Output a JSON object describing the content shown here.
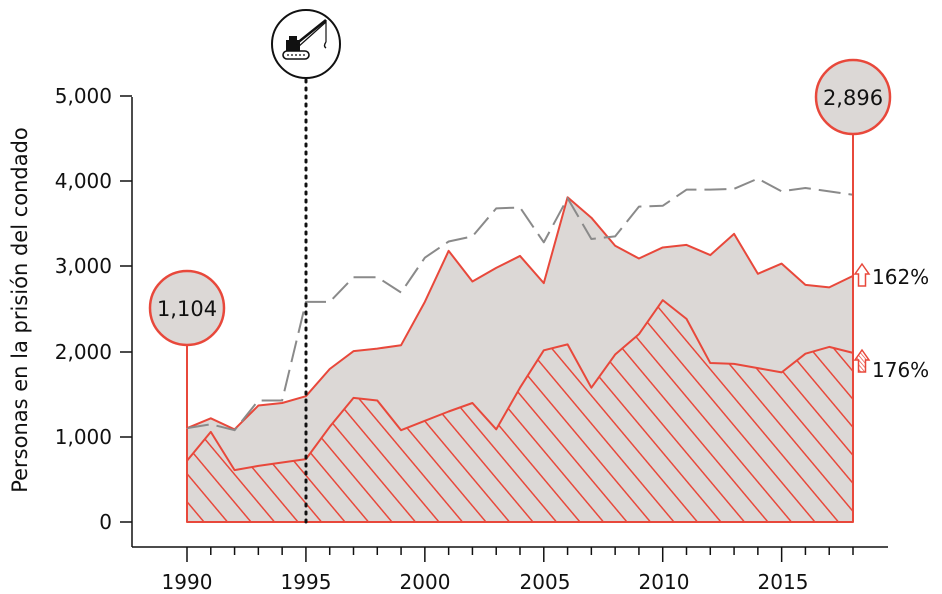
{
  "chart_data": {
    "type": "area",
    "ylabel": "Personas en la prisión del condado",
    "xlabel": "",
    "ylim": [
      0,
      5000
    ],
    "xlim": [
      1990,
      2018
    ],
    "x_ticks": [
      "1990",
      "1995",
      "2000",
      "2005",
      "2010",
      "2015"
    ],
    "y_ticks": [
      "0",
      "1,000",
      "2,000",
      "3,000",
      "4,000",
      "5,000"
    ],
    "grid": false,
    "x": [
      1990,
      1991,
      1992,
      1993,
      1994,
      1995,
      1996,
      1997,
      1998,
      1999,
      2000,
      2001,
      2002,
      2003,
      2004,
      2005,
      2006,
      2007,
      2008,
      2009,
      2010,
      2011,
      2012,
      2013,
      2014,
      2015,
      2016,
      2017,
      2018
    ],
    "series": [
      {
        "style": "gray filled area with red outline",
        "values": [
          1104,
          1220,
          1090,
          1370,
          1400,
          1480,
          1800,
          2010,
          2040,
          2080,
          2590,
          3190,
          2830,
          2990,
          3130,
          2810,
          3820,
          3580,
          3250,
          3100,
          3230,
          3260,
          3140,
          3390,
          2920,
          3040,
          2790,
          2760,
          2896
        ]
      },
      {
        "style": "red hatched area",
        "values": [
          720,
          1060,
          610,
          660,
          700,
          740,
          1120,
          1460,
          1430,
          1080,
          1190,
          1300,
          1400,
          1090,
          1580,
          2020,
          2090,
          1580,
          1970,
          2210,
          2610,
          2390,
          1870,
          1860,
          1810,
          1760,
          1980,
          2060,
          1990
        ]
      },
      {
        "style": "gray dashed line",
        "values": [
          1104,
          1150,
          1080,
          1430,
          1430,
          2590,
          2590,
          2880,
          2880,
          2700,
          3110,
          3300,
          3360,
          3690,
          3700,
          3290,
          3810,
          3330,
          3360,
          3710,
          3720,
          3910,
          3910,
          3920,
          4040,
          3890,
          3930,
          3890,
          3850
        ]
      }
    ],
    "callouts": {
      "start_value": "1,104",
      "end_value": "2,896",
      "pct_gray": "162%",
      "pct_hatched": "176%"
    },
    "marker_year": 1995,
    "icon": "crane-icon",
    "colors": {
      "red": "#e8483b",
      "fill_gray": "#dcd8d6",
      "dash_gray": "#8a8a8a",
      "text": "#111111"
    }
  }
}
